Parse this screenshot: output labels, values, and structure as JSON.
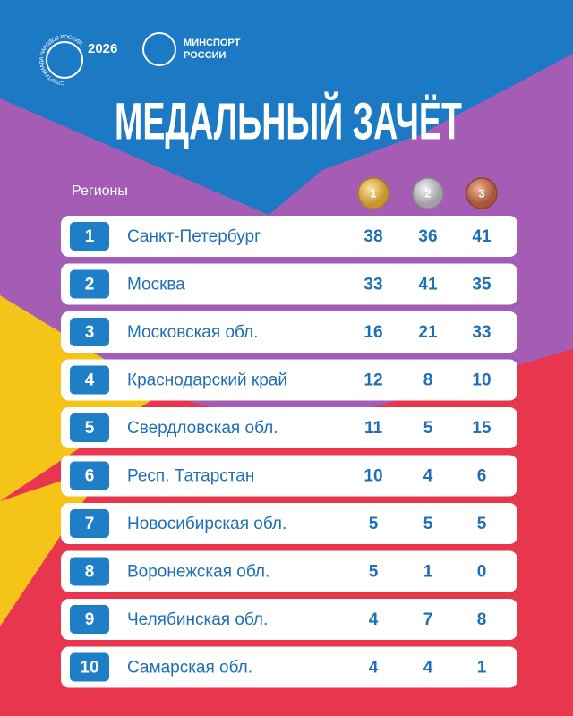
{
  "header": {
    "logo_ring": "СПАРТАКИАДА НАРОДОВ РОССИИ",
    "logo_year": "2026",
    "ministry_line1": "МИНСПОРТ",
    "ministry_line2": "РОССИИ",
    "title": "МЕДАЛЬНЫЙ ЗАЧЁТ"
  },
  "table": {
    "region_header": "Регионы",
    "medals": [
      "1",
      "2",
      "3"
    ],
    "rows": [
      [
        "1",
        "Санкт-Петербург",
        "38",
        "36",
        "41"
      ],
      [
        "2",
        "Москва",
        "33",
        "41",
        "35"
      ],
      [
        "3",
        "Московская обл.",
        "16",
        "21",
        "33"
      ],
      [
        "4",
        "Краснодарский край",
        "12",
        "8",
        "10"
      ],
      [
        "5",
        "Свердловская обл.",
        "11",
        "5",
        "15"
      ],
      [
        "6",
        "Респ. Татарстан",
        "10",
        "4",
        "6"
      ],
      [
        "7",
        "Новосибирская обл.",
        "5",
        "5",
        "5"
      ],
      [
        "8",
        "Воронежская обл.",
        "5",
        "1",
        "0"
      ],
      [
        "9",
        "Челябинская обл.",
        "4",
        "7",
        "8"
      ],
      [
        "10",
        "Самарская обл.",
        "4",
        "4",
        "1"
      ]
    ]
  }
}
